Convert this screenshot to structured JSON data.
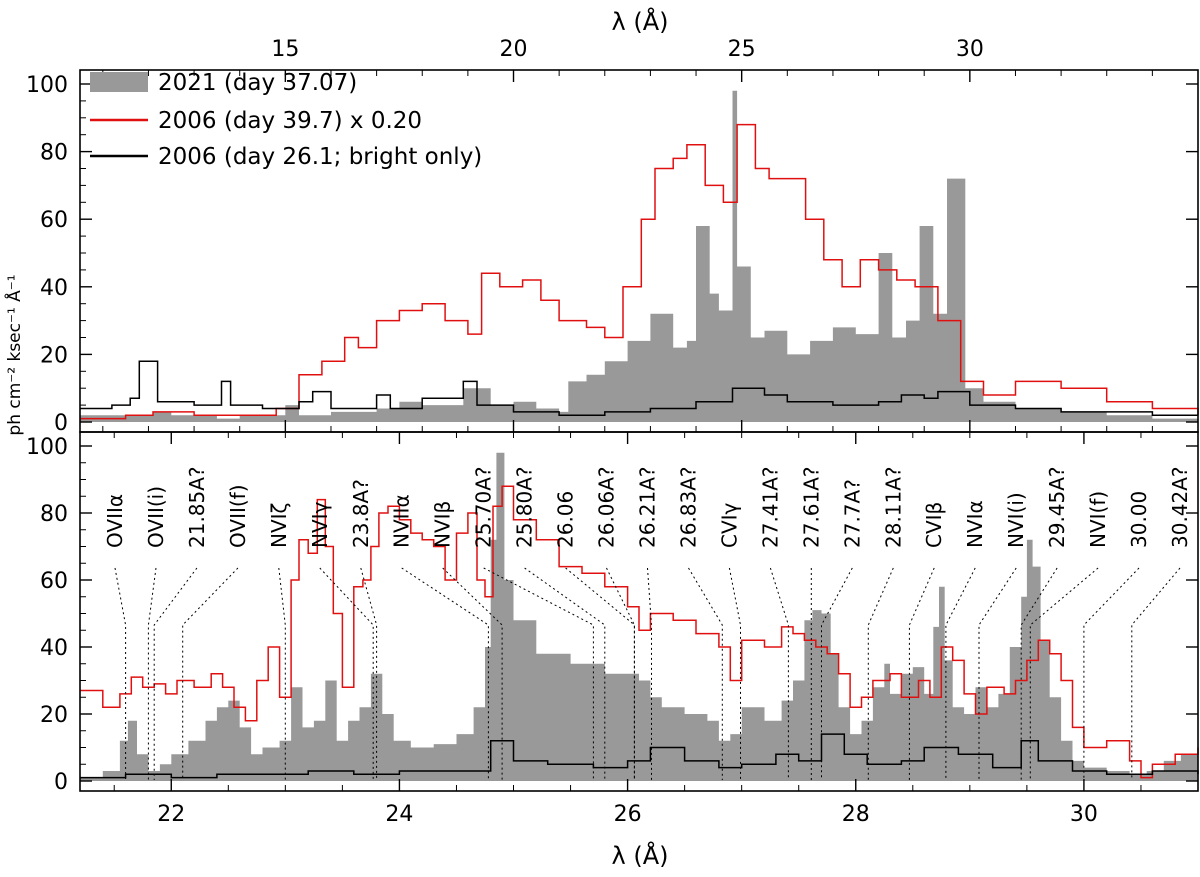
{
  "chart_data": [
    {
      "panel": "top",
      "type": "line",
      "x_axis_position": "top",
      "xlabel": "λ (Å)",
      "ylabel": "ph cm⁻² ksec⁻¹ Å⁻¹",
      "xlim": [
        10.5,
        35.0
      ],
      "ylim": [
        0,
        100
      ],
      "xticks": [
        15,
        20,
        25,
        30
      ],
      "yticks": [
        0,
        20,
        40,
        60,
        80,
        100
      ],
      "legend_position": "top-left",
      "series": [
        {
          "name": "2021 (day 37.07)",
          "style": "filled",
          "color": "#999999",
          "x": [
            10.5,
            11.0,
            11.5,
            12.1,
            12.5,
            13.0,
            13.5,
            14.0,
            14.5,
            15.0,
            15.3,
            16.0,
            17.0,
            17.5,
            18.0,
            18.5,
            18.9,
            19.5,
            20.0,
            20.5,
            21.0,
            21.2,
            21.6,
            22.0,
            22.5,
            23.0,
            23.5,
            23.8,
            24.0,
            24.3,
            24.5,
            24.8,
            24.9,
            25.2,
            25.5,
            26.0,
            26.5,
            27.0,
            27.5,
            28.0,
            28.3,
            28.6,
            28.9,
            29.2,
            29.5,
            29.9,
            30.3,
            31.0,
            32.0,
            33.0,
            34.0,
            35.0
          ],
          "values": [
            2,
            2,
            2,
            3,
            2,
            2,
            1,
            2,
            2,
            5,
            2,
            3,
            4,
            6,
            5,
            5,
            10,
            5,
            6,
            4,
            3,
            12,
            14,
            18,
            24,
            32,
            22,
            24,
            58,
            38,
            33,
            98,
            46,
            25,
            27,
            20,
            24,
            28,
            26,
            50,
            25,
            30,
            58,
            32,
            72,
            10,
            6,
            4,
            3,
            2,
            1,
            1
          ]
        },
        {
          "name": "2006 (day 39.7) x 0.20",
          "style": "line",
          "color": "#e01010",
          "x": [
            10.5,
            11.5,
            12.1,
            13.0,
            14.0,
            14.8,
            15.3,
            15.8,
            16.3,
            16.6,
            17.0,
            17.5,
            18.0,
            18.5,
            19.0,
            19.3,
            19.7,
            20.2,
            20.6,
            21.0,
            21.6,
            22.0,
            22.4,
            22.8,
            23.1,
            23.5,
            23.8,
            24.2,
            24.6,
            24.9,
            25.3,
            25.6,
            26.0,
            26.4,
            26.8,
            27.2,
            27.6,
            28.0,
            28.4,
            28.8,
            29.0,
            29.3,
            29.8,
            30.3,
            31.0,
            32.0,
            33.0,
            34.0,
            35.0
          ],
          "values": [
            1,
            2,
            3,
            2,
            2,
            4,
            14,
            18,
            25,
            22,
            30,
            33,
            35,
            30,
            26,
            44,
            40,
            42,
            36,
            30,
            28,
            25,
            40,
            60,
            75,
            78,
            82,
            70,
            65,
            88,
            75,
            72,
            72,
            60,
            48,
            40,
            48,
            45,
            42,
            40,
            40,
            30,
            12,
            8,
            12,
            10,
            6,
            4,
            2
          ]
        },
        {
          "name": "2006 (day 26.1; bright only)",
          "style": "line",
          "color": "#000000",
          "x": [
            10.5,
            11.2,
            11.6,
            11.8,
            12.2,
            13.0,
            13.6,
            13.8,
            14.5,
            15.3,
            15.6,
            16.0,
            16.6,
            17.0,
            17.3,
            18.0,
            18.9,
            19.2,
            20.0,
            21.0,
            22.0,
            23.0,
            24.0,
            24.8,
            25.5,
            26.0,
            27.0,
            28.0,
            28.5,
            29.0,
            29.3,
            30.0,
            31.0,
            32.0,
            33.0,
            34.0,
            35.0
          ],
          "values": [
            4,
            5,
            7,
            18,
            6,
            5,
            12,
            5,
            4,
            6,
            9,
            4,
            4,
            8,
            4,
            7,
            12,
            5,
            3,
            2,
            3,
            4,
            6,
            10,
            8,
            6,
            5,
            6,
            8,
            7,
            9,
            5,
            4,
            3,
            3,
            2,
            2
          ]
        }
      ]
    },
    {
      "panel": "bottom",
      "type": "line",
      "x_axis_position": "bottom",
      "xlabel": "λ (Å)",
      "xlim": [
        21.2,
        31.0
      ],
      "ylim": [
        0,
        100
      ],
      "xticks": [
        22,
        24,
        26,
        28,
        30
      ],
      "yticks": [
        0,
        20,
        40,
        60,
        80,
        100
      ],
      "series": [
        {
          "name": "2021 (day 37.07)",
          "style": "filled",
          "color": "#999999",
          "x": [
            21.2,
            21.4,
            21.55,
            21.62,
            21.7,
            21.8,
            21.9,
            22.0,
            22.15,
            22.3,
            22.4,
            22.5,
            22.6,
            22.7,
            22.8,
            22.95,
            23.05,
            23.15,
            23.25,
            23.35,
            23.45,
            23.55,
            23.65,
            23.75,
            23.85,
            23.95,
            24.1,
            24.3,
            24.5,
            24.65,
            24.75,
            24.8,
            24.85,
            24.92,
            25.0,
            25.2,
            25.5,
            25.8,
            26.1,
            26.2,
            26.3,
            26.5,
            26.7,
            26.8,
            26.9,
            27.0,
            27.2,
            27.35,
            27.45,
            27.55,
            27.62,
            27.7,
            27.78,
            27.85,
            27.95,
            28.05,
            28.15,
            28.25,
            28.3,
            28.4,
            28.5,
            28.6,
            28.68,
            28.73,
            28.78,
            28.85,
            28.95,
            29.05,
            29.15,
            29.25,
            29.35,
            29.45,
            29.5,
            29.55,
            29.62,
            29.7,
            29.8,
            29.9,
            30.0,
            30.2,
            30.4,
            30.55,
            30.7,
            30.85,
            31.0
          ],
          "values": [
            1,
            3,
            12,
            18,
            8,
            3,
            5,
            8,
            12,
            18,
            22,
            24,
            16,
            8,
            10,
            12,
            28,
            16,
            18,
            30,
            12,
            18,
            22,
            32,
            20,
            12,
            10,
            11,
            14,
            22,
            40,
            72,
            98,
            60,
            48,
            38,
            35,
            32,
            30,
            25,
            22,
            20,
            18,
            12,
            14,
            22,
            18,
            24,
            30,
            48,
            51,
            50,
            38,
            22,
            14,
            18,
            28,
            35,
            26,
            32,
            34,
            26,
            46,
            58,
            36,
            22,
            20,
            28,
            22,
            26,
            40,
            55,
            72,
            64,
            42,
            25,
            12,
            6,
            4,
            3,
            2,
            3,
            6,
            8,
            4
          ]
        },
        {
          "name": "2006 (day 39.7) x 0.20",
          "style": "line",
          "color": "#e01010",
          "x": [
            21.2,
            21.4,
            21.55,
            21.65,
            21.75,
            21.85,
            21.95,
            22.05,
            22.2,
            22.35,
            22.45,
            22.55,
            22.65,
            22.75,
            22.85,
            22.95,
            23.05,
            23.12,
            23.2,
            23.28,
            23.35,
            23.42,
            23.5,
            23.6,
            23.68,
            23.75,
            23.82,
            23.9,
            24.0,
            24.1,
            24.2,
            24.3,
            24.4,
            24.5,
            24.6,
            24.68,
            24.75,
            24.82,
            24.9,
            25.0,
            25.2,
            25.4,
            25.6,
            25.8,
            26.0,
            26.1,
            26.2,
            26.4,
            26.6,
            26.8,
            26.9,
            27.0,
            27.2,
            27.35,
            27.45,
            27.55,
            27.65,
            27.75,
            27.85,
            27.95,
            28.05,
            28.15,
            28.3,
            28.4,
            28.55,
            28.65,
            28.75,
            28.85,
            28.95,
            29.05,
            29.15,
            29.3,
            29.4,
            29.5,
            29.6,
            29.7,
            29.8,
            29.9,
            30.0,
            30.2,
            30.4,
            30.5,
            30.6,
            30.8,
            31.0
          ],
          "values": [
            27,
            22,
            26,
            31,
            28,
            29,
            26,
            30,
            28,
            32,
            28,
            22,
            18,
            30,
            40,
            25,
            60,
            72,
            68,
            84,
            70,
            50,
            28,
            58,
            60,
            70,
            80,
            82,
            78,
            74,
            72,
            70,
            60,
            74,
            80,
            60,
            55,
            82,
            88,
            78,
            72,
            64,
            62,
            58,
            52,
            45,
            50,
            48,
            44,
            40,
            30,
            42,
            40,
            46,
            44,
            42,
            40,
            38,
            32,
            22,
            25,
            30,
            32,
            25,
            30,
            25,
            40,
            36,
            26,
            20,
            28,
            26,
            30,
            36,
            42,
            38,
            30,
            16,
            10,
            12,
            6,
            1,
            5,
            8,
            10
          ]
        },
        {
          "name": "2006 (day 26.1; bright only)",
          "style": "line",
          "color": "#000000",
          "x": [
            21.2,
            21.6,
            22.0,
            22.4,
            22.8,
            23.2,
            23.6,
            24.0,
            24.4,
            24.8,
            25.0,
            25.3,
            25.7,
            26.0,
            26.2,
            26.5,
            26.8,
            27.0,
            27.3,
            27.5,
            27.7,
            27.9,
            28.1,
            28.4,
            28.6,
            28.9,
            29.2,
            29.45,
            29.6,
            29.9,
            30.2,
            30.6,
            31.0
          ],
          "values": [
            1,
            2,
            1,
            2,
            2,
            3,
            2,
            3,
            3,
            12,
            6,
            5,
            4,
            6,
            10,
            6,
            4,
            5,
            8,
            6,
            14,
            8,
            5,
            6,
            10,
            8,
            4,
            12,
            6,
            3,
            2,
            3,
            2
          ]
        }
      ],
      "line_ids": [
        {
          "label": "OVIIα",
          "wavelength": 21.6
        },
        {
          "label": "OVII(i)",
          "wavelength": 21.8
        },
        {
          "label": "21.85A?",
          "wavelength": 21.85
        },
        {
          "label": "OVII(f)",
          "wavelength": 22.1
        },
        {
          "label": "NVIζ",
          "wavelength": 23.0
        },
        {
          "label": "NVIγ",
          "wavelength": 23.77
        },
        {
          "label": "23.8A?",
          "wavelength": 23.8
        },
        {
          "label": "NVIIα",
          "wavelength": 24.78
        },
        {
          "label": "NVIβ",
          "wavelength": 24.9
        },
        {
          "label": "25.70A?",
          "wavelength": 25.7
        },
        {
          "label": "25.80A?",
          "wavelength": 25.8
        },
        {
          "label": "26.06",
          "wavelength": 26.06
        },
        {
          "label": "26.06A?",
          "wavelength": 26.06
        },
        {
          "label": "26.21A?",
          "wavelength": 26.21
        },
        {
          "label": "26.83A?",
          "wavelength": 26.83
        },
        {
          "label": "CVIγ",
          "wavelength": 26.99
        },
        {
          "label": "27.41A?",
          "wavelength": 27.41
        },
        {
          "label": "27.61A?",
          "wavelength": 27.61
        },
        {
          "label": "27.7A?",
          "wavelength": 27.7
        },
        {
          "label": "28.11A?",
          "wavelength": 28.11
        },
        {
          "label": "CVIβ",
          "wavelength": 28.47
        },
        {
          "label": "NVIα",
          "wavelength": 28.79
        },
        {
          "label": "NVI(i)",
          "wavelength": 29.08
        },
        {
          "label": "29.45A?",
          "wavelength": 29.45
        },
        {
          "label": "NVI(f)",
          "wavelength": 29.53
        },
        {
          "label": "30.00",
          "wavelength": 30.0
        },
        {
          "label": "30.42A?",
          "wavelength": 30.42
        }
      ]
    }
  ],
  "legend": {
    "entries": [
      "2021 (day 37.07)",
      "2006 (day 39.7) x 0.20",
      "2006 (day 26.1; bright only)"
    ]
  }
}
